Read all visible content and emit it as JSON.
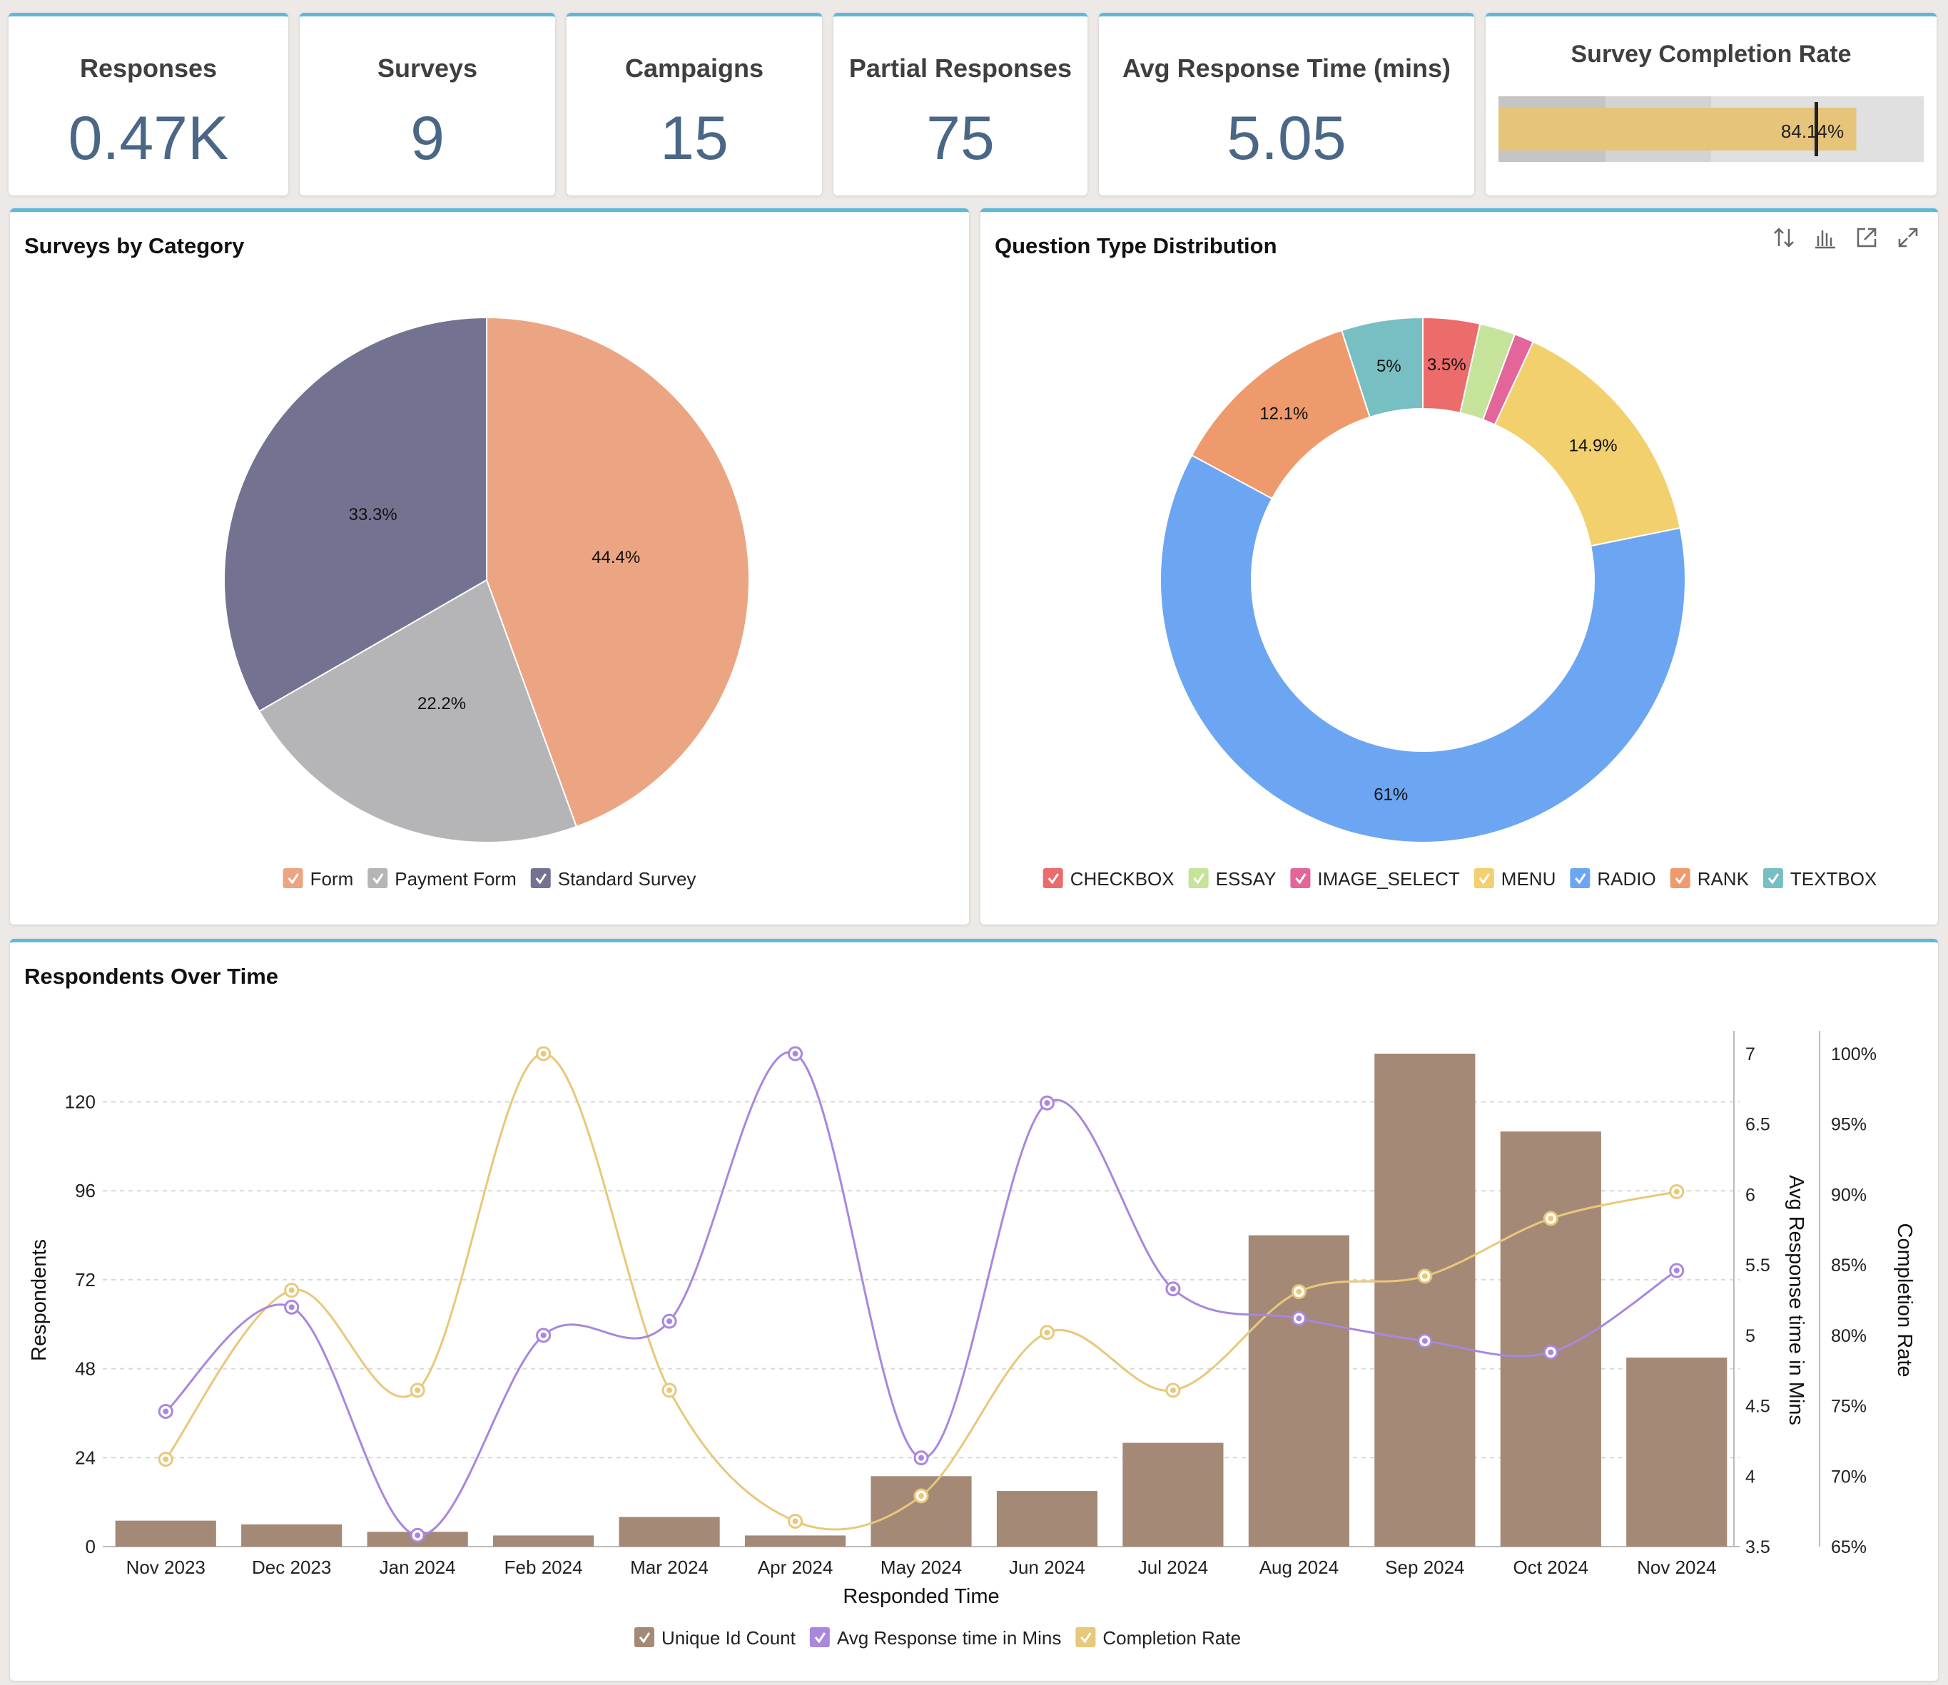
{
  "kpis": [
    {
      "title": "Responses",
      "value": "0.47K"
    },
    {
      "title": "Surveys",
      "value": "9"
    },
    {
      "title": "Campaigns",
      "value": "15"
    },
    {
      "title": "Partial Responses",
      "value": "75"
    },
    {
      "title": "Avg Response Time (mins)",
      "value": "5.05"
    }
  ],
  "completion": {
    "title": "Survey Completion Rate",
    "value": 84.14,
    "label": "84.14%",
    "bar_color": "#e6c47a"
  },
  "pie": {
    "title": "Surveys by Category",
    "chart_data": {
      "type": "pie",
      "slices": [
        {
          "name": "Form",
          "value": 44.4,
          "label": "44.4%",
          "color": "#eba582"
        },
        {
          "name": "Payment Form",
          "value": 22.2,
          "label": "22.2%",
          "color": "#b5b5b8"
        },
        {
          "name": "Standard Survey",
          "value": 33.3,
          "label": "33.3%",
          "color": "#737391"
        }
      ]
    }
  },
  "donut": {
    "title": "Question Type Distribution",
    "toolbar_icons": [
      "sort-icon",
      "bar-chart-icon",
      "export-icon",
      "expand-icon"
    ],
    "chart_data": {
      "type": "pie",
      "slices": [
        {
          "name": "CHECKBOX",
          "value": 3.5,
          "label": "3.5%",
          "color": "#ec6b6b"
        },
        {
          "name": "ESSAY",
          "value": 2.2,
          "label": "",
          "color": "#c5e39b"
        },
        {
          "name": "IMAGE_SELECT",
          "value": 1.2,
          "label": "",
          "color": "#e3659a"
        },
        {
          "name": "MENU",
          "value": 14.9,
          "label": "14.9%",
          "color": "#f2d06e"
        },
        {
          "name": "RADIO",
          "value": 61,
          "label": "61%",
          "color": "#6ca6f3"
        },
        {
          "name": "RANK",
          "value": 12.1,
          "label": "12.1%",
          "color": "#ee9a6c"
        },
        {
          "name": "TEXTBOX",
          "value": 5,
          "label": "5%",
          "color": "#78bfc4"
        }
      ]
    }
  },
  "combo": {
    "title": "Respondents Over Time",
    "chart_data": {
      "type": "bar",
      "categories": [
        "Nov 2023",
        "Dec 2023",
        "Jan 2024",
        "Feb 2024",
        "Mar 2024",
        "Apr 2024",
        "May 2024",
        "Jun 2024",
        "Jul 2024",
        "Aug 2024",
        "Sep 2024",
        "Oct 2024",
        "Nov 2024"
      ],
      "xlabel": "Responded Time",
      "ylabel": "Respondents",
      "y2label": "Avg Response time in Mins",
      "y3label": "Completion Rate",
      "ylim": [
        0,
        133
      ],
      "y_ticks": [
        0,
        24,
        48,
        72,
        96,
        120
      ],
      "y2lim": [
        3.5,
        7
      ],
      "y2_ticks": [
        "3.5",
        "4",
        "4.5",
        "5",
        "5.5",
        "6",
        "6.5",
        "7"
      ],
      "y3lim": [
        65,
        100
      ],
      "y3_ticks": [
        "65%",
        "70%",
        "75%",
        "80%",
        "85%",
        "90%",
        "95%",
        "100%"
      ],
      "series": [
        {
          "name": "Unique Id Count",
          "kind": "bar",
          "color": "#a38976",
          "values": [
            7,
            6,
            4,
            3,
            8,
            3,
            19,
            15,
            28,
            84,
            133,
            112,
            51
          ]
        },
        {
          "name": "Avg Response time in Mins",
          "kind": "line",
          "axis": "y2",
          "color": "#a987dd",
          "values": [
            4.46,
            5.2,
            3.58,
            5,
            5.1,
            7,
            4.13,
            6.65,
            5.33,
            5.12,
            4.96,
            4.88,
            5.46
          ]
        },
        {
          "name": "Completion Rate",
          "kind": "line",
          "axis": "y3",
          "color": "#e8c87a",
          "values": [
            71.2,
            83.2,
            76.1,
            100,
            76.1,
            66.8,
            68.6,
            80.2,
            76.1,
            83.1,
            84.2,
            88.3,
            90.2
          ]
        }
      ],
      "grid": true,
      "legend": "bottom-center"
    }
  }
}
